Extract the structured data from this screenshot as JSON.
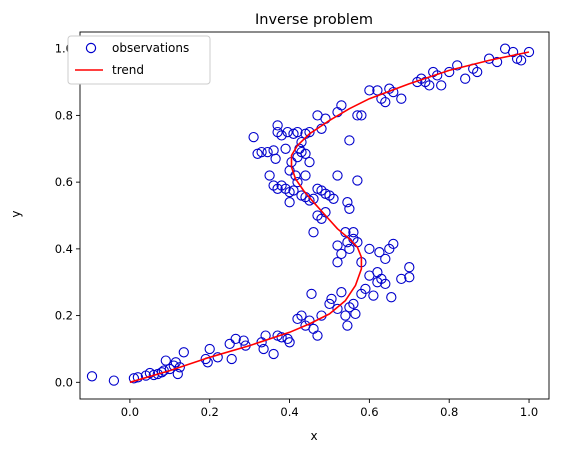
{
  "chart_data": {
    "type": "scatter",
    "title": "Inverse problem",
    "xlabel": "x",
    "ylabel": "y",
    "xlim": [
      -0.125,
      1.05
    ],
    "ylim": [
      -0.05,
      1.05
    ],
    "xticks": [
      0.0,
      0.2,
      0.4,
      0.6,
      0.8,
      1.0
    ],
    "yticks": [
      0.0,
      0.2,
      0.4,
      0.6,
      0.8,
      1.0
    ],
    "xtick_labels": [
      "0.0",
      "0.2",
      "0.4",
      "0.6",
      "0.8",
      "1.0"
    ],
    "ytick_labels": [
      "0.0",
      "0.2",
      "0.4",
      "0.6",
      "0.8",
      "1.0"
    ],
    "grid": false,
    "legend": {
      "placement": "top-left"
    },
    "series": [
      {
        "name": "observations",
        "kind": "scatter",
        "marker": "open-circle",
        "color": "#0000cc",
        "points": [
          [
            -0.095,
            0.018
          ],
          [
            -0.04,
            0.005
          ],
          [
            0.01,
            0.012
          ],
          [
            0.02,
            0.015
          ],
          [
            0.04,
            0.02
          ],
          [
            0.05,
            0.028
          ],
          [
            0.06,
            0.022
          ],
          [
            0.07,
            0.025
          ],
          [
            0.08,
            0.03
          ],
          [
            0.085,
            0.035
          ],
          [
            0.09,
            0.065
          ],
          [
            0.1,
            0.04
          ],
          [
            0.11,
            0.05
          ],
          [
            0.115,
            0.06
          ],
          [
            0.12,
            0.025
          ],
          [
            0.125,
            0.045
          ],
          [
            0.135,
            0.09
          ],
          [
            0.19,
            0.07
          ],
          [
            0.195,
            0.06
          ],
          [
            0.2,
            0.1
          ],
          [
            0.22,
            0.075
          ],
          [
            0.25,
            0.115
          ],
          [
            0.255,
            0.07
          ],
          [
            0.265,
            0.13
          ],
          [
            0.285,
            0.125
          ],
          [
            0.29,
            0.11
          ],
          [
            0.33,
            0.12
          ],
          [
            0.335,
            0.1
          ],
          [
            0.34,
            0.14
          ],
          [
            0.36,
            0.085
          ],
          [
            0.37,
            0.14
          ],
          [
            0.38,
            0.135
          ],
          [
            0.395,
            0.13
          ],
          [
            0.4,
            0.12
          ],
          [
            0.42,
            0.19
          ],
          [
            0.43,
            0.2
          ],
          [
            0.44,
            0.17
          ],
          [
            0.45,
            0.185
          ],
          [
            0.46,
            0.16
          ],
          [
            0.47,
            0.14
          ],
          [
            0.48,
            0.2
          ],
          [
            0.5,
            0.235
          ],
          [
            0.505,
            0.25
          ],
          [
            0.52,
            0.22
          ],
          [
            0.53,
            0.27
          ],
          [
            0.54,
            0.2
          ],
          [
            0.55,
            0.225
          ],
          [
            0.56,
            0.235
          ],
          [
            0.565,
            0.205
          ],
          [
            0.455,
            0.265
          ],
          [
            0.545,
            0.17
          ],
          [
            0.58,
            0.265
          ],
          [
            0.59,
            0.28
          ],
          [
            0.6,
            0.32
          ],
          [
            0.62,
            0.3
          ],
          [
            0.61,
            0.26
          ],
          [
            0.63,
            0.31
          ],
          [
            0.64,
            0.295
          ],
          [
            0.655,
            0.255
          ],
          [
            0.68,
            0.31
          ],
          [
            0.7,
            0.345
          ],
          [
            0.7,
            0.315
          ],
          [
            0.6,
            0.4
          ],
          [
            0.62,
            0.33
          ],
          [
            0.625,
            0.39
          ],
          [
            0.64,
            0.37
          ],
          [
            0.65,
            0.4
          ],
          [
            0.66,
            0.415
          ],
          [
            0.58,
            0.36
          ],
          [
            0.57,
            0.42
          ],
          [
            0.56,
            0.43
          ],
          [
            0.55,
            0.4
          ],
          [
            0.545,
            0.42
          ],
          [
            0.56,
            0.45
          ],
          [
            0.52,
            0.41
          ],
          [
            0.52,
            0.36
          ],
          [
            0.53,
            0.385
          ],
          [
            0.54,
            0.45
          ],
          [
            0.46,
            0.45
          ],
          [
            0.47,
            0.5
          ],
          [
            0.48,
            0.49
          ],
          [
            0.49,
            0.51
          ],
          [
            0.5,
            0.56
          ],
          [
            0.51,
            0.55
          ],
          [
            0.545,
            0.54
          ],
          [
            0.55,
            0.52
          ],
          [
            0.57,
            0.605
          ],
          [
            0.47,
            0.58
          ],
          [
            0.48,
            0.575
          ],
          [
            0.49,
            0.565
          ],
          [
            0.46,
            0.55
          ],
          [
            0.45,
            0.545
          ],
          [
            0.44,
            0.555
          ],
          [
            0.43,
            0.56
          ],
          [
            0.44,
            0.62
          ],
          [
            0.42,
            0.6
          ],
          [
            0.41,
            0.575
          ],
          [
            0.4,
            0.57
          ],
          [
            0.39,
            0.58
          ],
          [
            0.38,
            0.59
          ],
          [
            0.37,
            0.58
          ],
          [
            0.36,
            0.59
          ],
          [
            0.35,
            0.62
          ],
          [
            0.4,
            0.54
          ],
          [
            0.415,
            0.62
          ],
          [
            0.4,
            0.635
          ],
          [
            0.405,
            0.66
          ],
          [
            0.42,
            0.675
          ],
          [
            0.43,
            0.69
          ],
          [
            0.425,
            0.7
          ],
          [
            0.44,
            0.685
          ],
          [
            0.45,
            0.66
          ],
          [
            0.39,
            0.7
          ],
          [
            0.365,
            0.67
          ],
          [
            0.36,
            0.695
          ],
          [
            0.345,
            0.69
          ],
          [
            0.33,
            0.69
          ],
          [
            0.32,
            0.685
          ],
          [
            0.31,
            0.735
          ],
          [
            0.37,
            0.77
          ],
          [
            0.37,
            0.75
          ],
          [
            0.38,
            0.74
          ],
          [
            0.395,
            0.75
          ],
          [
            0.41,
            0.745
          ],
          [
            0.42,
            0.75
          ],
          [
            0.43,
            0.72
          ],
          [
            0.44,
            0.745
          ],
          [
            0.45,
            0.75
          ],
          [
            0.47,
            0.8
          ],
          [
            0.48,
            0.76
          ],
          [
            0.49,
            0.79
          ],
          [
            0.52,
            0.81
          ],
          [
            0.53,
            0.83
          ],
          [
            0.55,
            0.725
          ],
          [
            0.57,
            0.8
          ],
          [
            0.58,
            0.8
          ],
          [
            0.6,
            0.875
          ],
          [
            0.62,
            0.875
          ],
          [
            0.63,
            0.85
          ],
          [
            0.64,
            0.84
          ],
          [
            0.65,
            0.88
          ],
          [
            0.66,
            0.87
          ],
          [
            0.68,
            0.85
          ],
          [
            0.72,
            0.9
          ],
          [
            0.73,
            0.91
          ],
          [
            0.74,
            0.9
          ],
          [
            0.75,
            0.89
          ],
          [
            0.76,
            0.93
          ],
          [
            0.77,
            0.92
          ],
          [
            0.78,
            0.89
          ],
          [
            0.8,
            0.93
          ],
          [
            0.82,
            0.95
          ],
          [
            0.84,
            0.91
          ],
          [
            0.86,
            0.94
          ],
          [
            0.87,
            0.93
          ],
          [
            0.9,
            0.97
          ],
          [
            0.92,
            0.96
          ],
          [
            0.94,
            1.0
          ],
          [
            0.96,
            0.99
          ],
          [
            0.97,
            0.97
          ],
          [
            0.98,
            0.965
          ],
          [
            1.0,
            0.99
          ],
          [
            0.52,
            0.62
          ]
        ]
      },
      {
        "name": "trend",
        "kind": "line",
        "color": "#ff0000",
        "points": [
          [
            0.0,
            0.0
          ],
          [
            0.1,
            0.035
          ],
          [
            0.2,
            0.075
          ],
          [
            0.3,
            0.11
          ],
          [
            0.4,
            0.15
          ],
          [
            0.45,
            0.175
          ],
          [
            0.5,
            0.205
          ],
          [
            0.54,
            0.245
          ],
          [
            0.565,
            0.29
          ],
          [
            0.58,
            0.34
          ],
          [
            0.58,
            0.375
          ],
          [
            0.57,
            0.405
          ],
          [
            0.55,
            0.43
          ],
          [
            0.52,
            0.46
          ],
          [
            0.49,
            0.5
          ],
          [
            0.46,
            0.54
          ],
          [
            0.435,
            0.575
          ],
          [
            0.415,
            0.61
          ],
          [
            0.405,
            0.645
          ],
          [
            0.405,
            0.68
          ],
          [
            0.42,
            0.71
          ],
          [
            0.45,
            0.745
          ],
          [
            0.5,
            0.785
          ],
          [
            0.55,
            0.82
          ],
          [
            0.6,
            0.85
          ],
          [
            0.7,
            0.895
          ],
          [
            0.8,
            0.935
          ],
          [
            0.9,
            0.965
          ],
          [
            1.0,
            0.99
          ]
        ]
      }
    ]
  }
}
